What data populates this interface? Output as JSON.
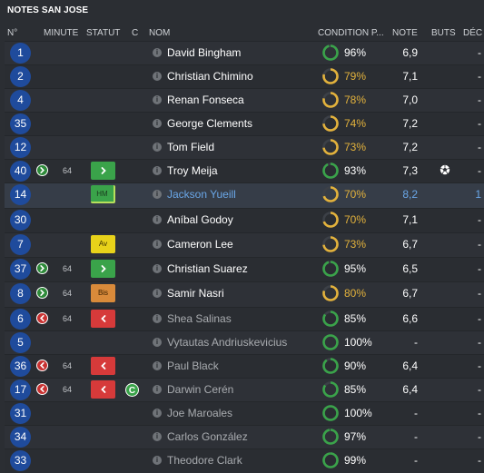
{
  "title": "NOTES SAN JOSE",
  "columns": {
    "num": "N°",
    "minute": "MINUTE",
    "statut": "STATUT",
    "c": "C",
    "nom": "NOM",
    "condition": "CONDITION P...",
    "note": "NOTE",
    "buts": "BUTS",
    "dec": "DÉC"
  },
  "colors": {
    "accent": "#1f4b9c",
    "ring_green": "#3aa34a",
    "ring_yellow": "#e3b23c",
    "link": "#6aa7e8"
  },
  "players": [
    {
      "num": "1",
      "minute": "",
      "sub": "",
      "badge": "",
      "badge_label": "",
      "captain": false,
      "name": "David Bingham",
      "style": "normal",
      "condition": "96%",
      "cond_value": 96,
      "note": "6,9",
      "buts": "",
      "dec": "-"
    },
    {
      "num": "2",
      "minute": "",
      "sub": "",
      "badge": "",
      "badge_label": "",
      "captain": false,
      "name": "Christian Chimino",
      "style": "normal",
      "condition": "79%",
      "cond_value": 79,
      "note": "7,1",
      "buts": "",
      "dec": "-"
    },
    {
      "num": "4",
      "minute": "",
      "sub": "",
      "badge": "",
      "badge_label": "",
      "captain": false,
      "name": "Renan Fonseca",
      "style": "normal",
      "condition": "78%",
      "cond_value": 78,
      "note": "7,0",
      "buts": "",
      "dec": "-"
    },
    {
      "num": "35",
      "minute": "",
      "sub": "",
      "badge": "",
      "badge_label": "",
      "captain": false,
      "name": "George Clements",
      "style": "normal",
      "condition": "74%",
      "cond_value": 74,
      "note": "7,2",
      "buts": "",
      "dec": "-"
    },
    {
      "num": "12",
      "minute": "",
      "sub": "",
      "badge": "",
      "badge_label": "",
      "captain": false,
      "name": "Tom Field",
      "style": "normal",
      "condition": "73%",
      "cond_value": 73,
      "note": "7,2",
      "buts": "",
      "dec": "-"
    },
    {
      "num": "40",
      "minute": "64",
      "sub": "in",
      "badge": "green",
      "badge_label": "",
      "captain": false,
      "name": "Troy Meija",
      "style": "normal",
      "condition": "93%",
      "cond_value": 93,
      "note": "7,3",
      "buts": "ball-icon",
      "dec": "-"
    },
    {
      "num": "14",
      "minute": "",
      "sub": "",
      "badge": "hm",
      "badge_label": "HM",
      "captain": false,
      "name": "Jackson Yueill",
      "style": "link",
      "condition": "70%",
      "cond_value": 70,
      "note": "8,2",
      "buts": "",
      "dec": "1"
    },
    {
      "num": "30",
      "minute": "",
      "sub": "",
      "badge": "",
      "badge_label": "",
      "captain": false,
      "name": "Aníbal Godoy",
      "style": "normal",
      "condition": "70%",
      "cond_value": 70,
      "note": "7,1",
      "buts": "",
      "dec": "-"
    },
    {
      "num": "7",
      "minute": "",
      "sub": "",
      "badge": "av",
      "badge_label": "Av",
      "captain": false,
      "name": "Cameron Lee",
      "style": "normal",
      "condition": "73%",
      "cond_value": 73,
      "note": "6,7",
      "buts": "",
      "dec": "-"
    },
    {
      "num": "37",
      "minute": "64",
      "sub": "in",
      "badge": "green",
      "badge_label": "",
      "captain": false,
      "name": "Christian Suarez",
      "style": "normal",
      "condition": "95%",
      "cond_value": 95,
      "note": "6,5",
      "buts": "",
      "dec": "-"
    },
    {
      "num": "8",
      "minute": "64",
      "sub": "in",
      "badge": "bis",
      "badge_label": "Bis",
      "captain": false,
      "name": "Samir Nasri",
      "style": "normal",
      "condition": "80%",
      "cond_value": 80,
      "note": "6,7",
      "buts": "",
      "dec": "-"
    },
    {
      "num": "6",
      "minute": "64",
      "sub": "out",
      "badge": "red",
      "badge_label": "",
      "captain": false,
      "name": "Shea Salinas",
      "style": "dim",
      "condition": "85%",
      "cond_value": 85,
      "note": "6,6",
      "buts": "",
      "dec": "-"
    },
    {
      "num": "5",
      "minute": "",
      "sub": "",
      "badge": "",
      "badge_label": "",
      "captain": false,
      "name": "Vytautas Andriuskevicius",
      "style": "dim",
      "condition": "100%",
      "cond_value": 100,
      "note": "-",
      "buts": "",
      "dec": "-"
    },
    {
      "num": "36",
      "minute": "64",
      "sub": "out",
      "badge": "red",
      "badge_label": "",
      "captain": false,
      "name": "Paul Black",
      "style": "dim",
      "condition": "90%",
      "cond_value": 90,
      "note": "6,4",
      "buts": "",
      "dec": "-"
    },
    {
      "num": "17",
      "minute": "64",
      "sub": "out",
      "badge": "red",
      "badge_label": "",
      "captain": true,
      "captain_label": "C",
      "name": "Darwin Cerén",
      "style": "dim",
      "condition": "85%",
      "cond_value": 85,
      "note": "6,4",
      "buts": "",
      "dec": "-"
    },
    {
      "num": "31",
      "minute": "",
      "sub": "",
      "badge": "",
      "badge_label": "",
      "captain": false,
      "name": "Joe Maroales",
      "style": "dim",
      "condition": "100%",
      "cond_value": 100,
      "note": "-",
      "buts": "",
      "dec": "-"
    },
    {
      "num": "34",
      "minute": "",
      "sub": "",
      "badge": "",
      "badge_label": "",
      "captain": false,
      "name": "Carlos González",
      "style": "dim",
      "condition": "97%",
      "cond_value": 97,
      "note": "-",
      "buts": "",
      "dec": "-"
    },
    {
      "num": "33",
      "minute": "",
      "sub": "",
      "badge": "",
      "badge_label": "",
      "captain": false,
      "name": "Theodore Clark",
      "style": "dim",
      "condition": "99%",
      "cond_value": 99,
      "note": "-",
      "buts": "",
      "dec": "-"
    }
  ]
}
